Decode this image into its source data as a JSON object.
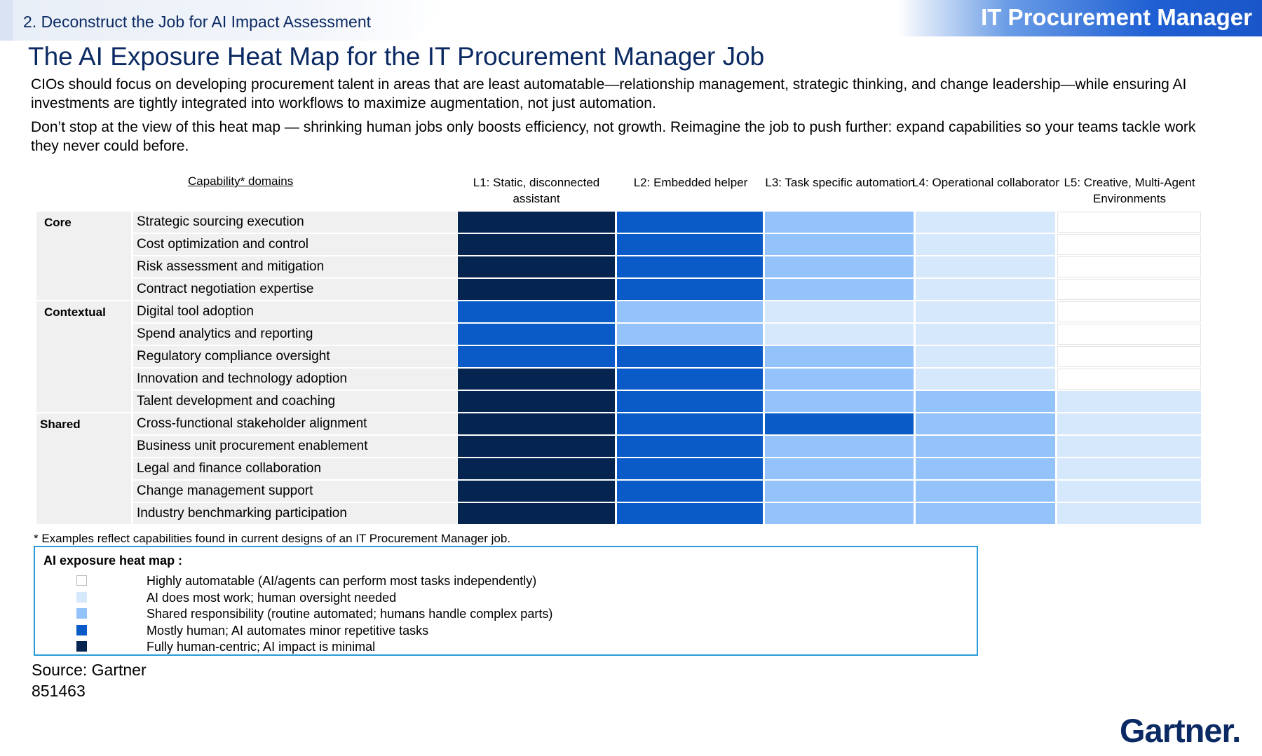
{
  "header": {
    "section": "2. Deconstruct the Job for AI Impact Assessment",
    "job_title": "IT Procurement Manager"
  },
  "title": "The AI Exposure Heat Map for the IT Procurement Manager Job",
  "paragraphs": [
    "CIOs should focus on developing procurement talent in areas that are least automatable—relationship management, strategic thinking, and change leadership—while ensuring AI investments are tightly integrated into workflows to maximize augmentation, not just automation.",
    "Don’t stop at the view of this heat map — shrinking human jobs only boosts efficiency, not growth. Reimagine the job to push further: expand capabilities so your teams tackle work they never could before."
  ],
  "chart_data": {
    "type": "heatmap",
    "row_header": "Capability* domains",
    "columns": [
      "L1: Static, disconnected assistant",
      "L2: Embedded helper",
      "L3: Task specific automation",
      "L4: Operational collaborator",
      "L5: Creative, Multi-Agent Environments"
    ],
    "groups": [
      {
        "name": "Core",
        "rows": [
          {
            "label": "Strategic sourcing execution",
            "levels": [
              4,
              3,
              2,
              1,
              0
            ]
          },
          {
            "label": "Cost optimization and control",
            "levels": [
              4,
              3,
              2,
              1,
              0
            ]
          },
          {
            "label": "Risk assessment and mitigation",
            "levels": [
              4,
              3,
              2,
              1,
              0
            ]
          },
          {
            "label": "Contract negotiation expertise",
            "levels": [
              4,
              3,
              2,
              1,
              0
            ]
          }
        ]
      },
      {
        "name": "Contextual",
        "rows": [
          {
            "label": "Digital tool adoption",
            "levels": [
              3,
              2,
              1,
              1,
              0
            ]
          },
          {
            "label": "Spend analytics and reporting",
            "levels": [
              3,
              2,
              1,
              1,
              0
            ]
          },
          {
            "label": "Regulatory compliance oversight",
            "levels": [
              3,
              3,
              2,
              1,
              0
            ]
          },
          {
            "label": "Innovation and technology adoption",
            "levels": [
              4,
              3,
              2,
              1,
              0
            ]
          },
          {
            "label": "Talent development and coaching",
            "levels": [
              4,
              3,
              2,
              2,
              1
            ]
          }
        ]
      },
      {
        "name": "Shared",
        "rows": [
          {
            "label": "Cross-functional stakeholder alignment",
            "levels": [
              4,
              3,
              3,
              2,
              1
            ]
          },
          {
            "label": "Business unit procurement enablement",
            "levels": [
              4,
              3,
              2,
              2,
              1
            ]
          },
          {
            "label": "Legal and finance collaboration",
            "levels": [
              4,
              3,
              2,
              2,
              1
            ]
          },
          {
            "label": "Change management support",
            "levels": [
              4,
              3,
              2,
              2,
              1
            ]
          },
          {
            "label": "Industry benchmarking participation",
            "levels": [
              4,
              3,
              2,
              2,
              1
            ]
          }
        ]
      }
    ],
    "scale_colors": [
      "#ffffff",
      "#d6e8fc",
      "#94c2fb",
      "#0a5bc8",
      "#052550"
    ],
    "legend": {
      "title": "AI exposure heat map :",
      "items": [
        "Highly automatable (AI/agents can perform most tasks independently)",
        "AI does most work; human oversight needed",
        "Shared responsibility (routine automated; humans handle complex parts)",
        "Mostly human; AI automates minor repetitive tasks",
        "Fully human-centric; AI impact is minimal"
      ]
    }
  },
  "footnote": "* Examples reflect capabilities found in current designs of an IT Procurement Manager job.",
  "source": "Source: Gartner",
  "source_id": "851463",
  "logo": "Gartner."
}
